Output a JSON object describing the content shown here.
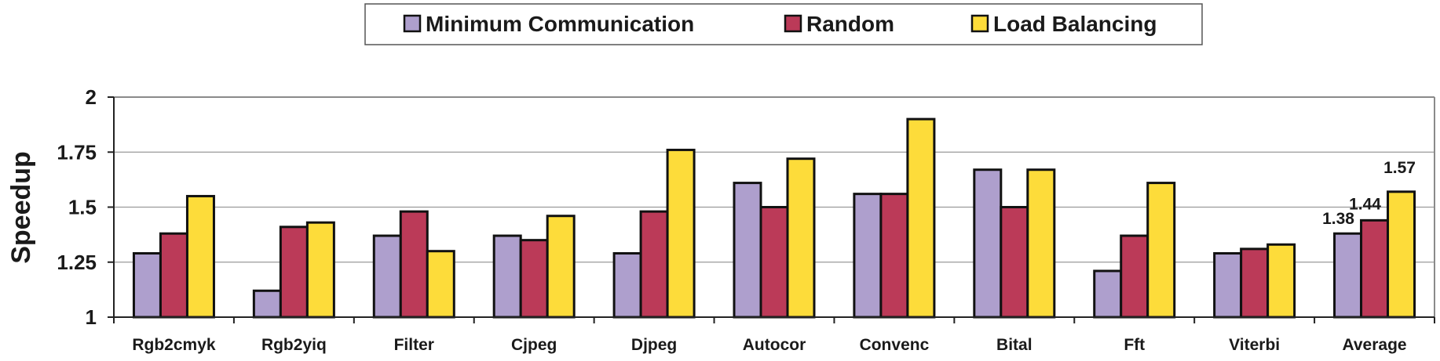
{
  "chart_data": {
    "type": "bar",
    "ylabel": "Speedup",
    "xlabel": "",
    "ylim": [
      1,
      2
    ],
    "yticks": [
      "1",
      "1.25",
      "1.5",
      "1.75",
      "2"
    ],
    "yticks_values": [
      1,
      1.25,
      1.5,
      1.75,
      2
    ],
    "grid": true,
    "legend_position": "top",
    "categories": [
      "Rgb2cmyk",
      "Rgb2yiq",
      "Filter",
      "Cjpeg",
      "Djpeg",
      "Autocor",
      "Convenc",
      "Bital",
      "Fft",
      "Viterbi",
      "Average"
    ],
    "series": [
      {
        "name": "Minimum Communication",
        "color": "#ae9fcd",
        "values": [
          1.29,
          1.12,
          1.37,
          1.37,
          1.29,
          1.61,
          1.56,
          1.67,
          1.21,
          1.29,
          1.38
        ]
      },
      {
        "name": "Random",
        "color": "#bb3a58",
        "values": [
          1.38,
          1.41,
          1.48,
          1.35,
          1.48,
          1.5,
          1.56,
          1.5,
          1.37,
          1.31,
          1.44
        ]
      },
      {
        "name": "Load Balancing",
        "color": "#fddc3a",
        "values": [
          1.55,
          1.43,
          1.3,
          1.46,
          1.76,
          1.72,
          1.9,
          1.67,
          1.61,
          1.33,
          1.57
        ]
      }
    ],
    "data_labels": {
      "category": "Average",
      "labels": [
        "1.38",
        "1.44",
        "1.57"
      ]
    }
  }
}
